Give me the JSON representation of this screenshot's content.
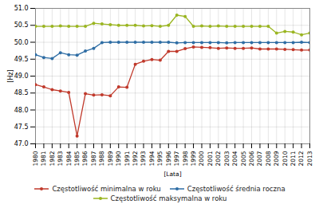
{
  "chart_data": {
    "type": "line",
    "xlabel": "[Lata]",
    "ylabel": "[Hz]",
    "x": [
      1980,
      1981,
      1982,
      1983,
      1984,
      1985,
      1986,
      1987,
      1988,
      1989,
      1990,
      1991,
      1992,
      1993,
      1994,
      1995,
      1996,
      1997,
      1998,
      1999,
      2000,
      2001,
      2002,
      2003,
      2004,
      2005,
      2006,
      2007,
      2008,
      2009,
      2010,
      2011,
      2012,
      2013
    ],
    "series": [
      {
        "name": "Częstotliwość minimalna w roku",
        "color": "#c0392b",
        "values": [
          48.75,
          48.68,
          48.6,
          48.56,
          48.52,
          47.23,
          48.48,
          48.44,
          48.45,
          48.42,
          48.68,
          48.67,
          49.35,
          49.44,
          49.49,
          49.47,
          49.73,
          49.73,
          49.81,
          49.86,
          49.85,
          49.84,
          49.82,
          49.83,
          49.82,
          49.82,
          49.83,
          49.8,
          49.8,
          49.8,
          49.79,
          49.78,
          49.77,
          49.77
        ]
      },
      {
        "name": "Częstotliwość średnia roczna",
        "color": "#2e6da4",
        "values": [
          49.63,
          49.55,
          49.52,
          49.69,
          49.63,
          49.62,
          49.74,
          49.82,
          49.99,
          50.0,
          50.0,
          50.0,
          50.0,
          50.0,
          50.0,
          50.0,
          50.0,
          49.98,
          49.99,
          49.99,
          49.99,
          49.99,
          49.99,
          49.98,
          49.99,
          49.99,
          49.99,
          49.99,
          49.99,
          49.99,
          49.99,
          49.99,
          50.0,
          49.99
        ]
      },
      {
        "name": "Częstotliwość maksymalna w roku",
        "color": "#9ab520",
        "values": [
          50.47,
          50.47,
          50.47,
          50.48,
          50.47,
          50.47,
          50.47,
          50.56,
          50.54,
          50.52,
          50.5,
          50.5,
          50.5,
          50.48,
          50.49,
          50.47,
          50.5,
          50.8,
          50.76,
          50.47,
          50.48,
          50.47,
          50.48,
          50.47,
          50.47,
          50.47,
          50.47,
          50.47,
          50.47,
          50.27,
          50.32,
          50.3,
          50.22,
          50.27
        ]
      }
    ],
    "xlim": [
      1980,
      2013
    ],
    "xticks": [
      1980,
      1981,
      1982,
      1983,
      1984,
      1985,
      1986,
      1987,
      1988,
      1989,
      1990,
      1991,
      1992,
      1993,
      1994,
      1995,
      1996,
      1997,
      1998,
      1999,
      2000,
      2001,
      2002,
      2003,
      2004,
      2005,
      2006,
      2007,
      2008,
      2009,
      2010,
      2011,
      2012,
      2013
    ],
    "ylim": [
      47.0,
      51.0
    ],
    "yticks": [
      {
        "value": 47.0,
        "label": "47.0"
      },
      47.5,
      {
        "value": 48.0,
        "label": "48.0"
      },
      48.5,
      {
        "value": 49.0,
        "label": "49.0"
      },
      49.5,
      {
        "value": 50.0,
        "label": "50.0"
      },
      50.5,
      {
        "value": 51.0,
        "label": "51.0"
      }
    ],
    "grid": true,
    "legend": "bottom",
    "marker": "circle"
  }
}
